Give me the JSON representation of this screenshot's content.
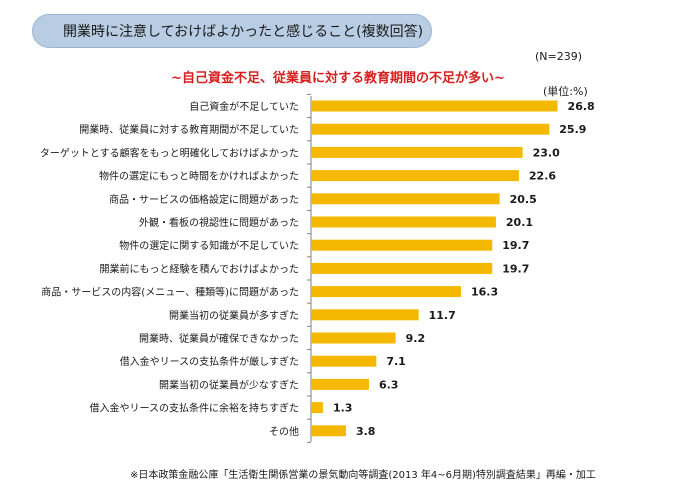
{
  "header": {
    "title": "開業時に注意しておけばよかったと感じること(複数回答)"
  },
  "sample_size": "(N=239)",
  "subtitle": "~自己資金不足、従業員に対する教育期間の不足が多い~",
  "unit": "(単位:%)",
  "colors": {
    "bar": "#f5b800",
    "title_accent": "#d62020",
    "header_bg": "#b8cde3"
  },
  "chart_data": {
    "type": "bar",
    "orientation": "horizontal",
    "categories": [
      "自己資金が不足していた",
      "開業時、従業員に対する教育期間が不足していた",
      "ターゲットとする顧客をもっと明確化しておけばよかった",
      "物件の選定にもっと時間をかければよかった",
      "商品・サービスの価格設定に問題があった",
      "外観・看板の視認性に問題があった",
      "物件の選定に関する知識が不足していた",
      "開業前にもっと経験を積んでおけばよかった",
      "商品・サービスの内容(メニュー、種類等)に問題があった",
      "開業当初の従業員が多すぎた",
      "開業時、従業員が確保できなかった",
      "借入金やリースの支払条件が厳しすぎた",
      "開業当初の従業員が少なすぎた",
      "借入金やリースの支払条件に余裕を持ちすぎた",
      "その他"
    ],
    "values": [
      26.8,
      25.9,
      23.0,
      22.6,
      20.5,
      20.1,
      19.7,
      19.7,
      16.3,
      11.7,
      9.2,
      7.1,
      6.3,
      1.3,
      3.8
    ],
    "value_labels": [
      "26.8",
      "25.9",
      "23.0",
      "22.6",
      "20.5",
      "20.1",
      "19.7",
      "19.7",
      "16.3",
      "11.7",
      "9.2",
      "7.1",
      "6.3",
      "1.3",
      "3.8"
    ],
    "xlim": [
      0,
      30
    ],
    "grid": false,
    "legend": "none"
  },
  "footer": "※日本政策金融公庫「生活衛生関係営業の景気動向等調査(2013 年4~6月期)特別調査結果」再編・加工"
}
